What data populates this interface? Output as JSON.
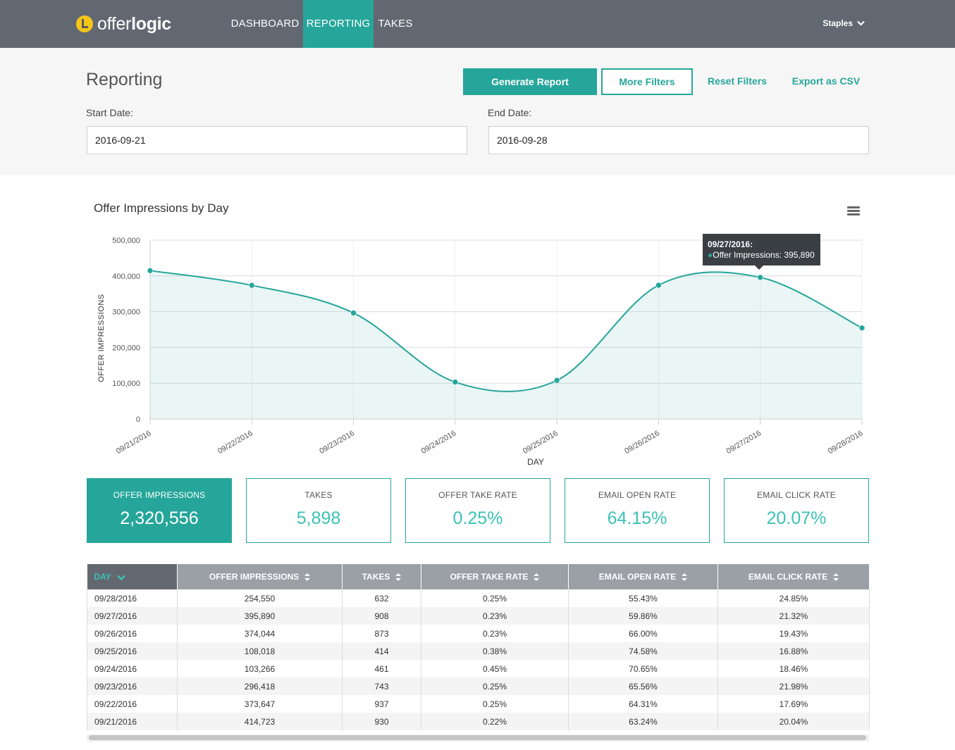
{
  "nav": {
    "brand": {
      "prefix": "offer",
      "bold": "logic"
    },
    "items": [
      "DASHBOARD",
      "REPORTING",
      "TAKES"
    ],
    "active": "REPORTING",
    "account": "Staples",
    "accent": "#26a69a",
    "bar_color": "#626871"
  },
  "filters": {
    "title": "Reporting",
    "generate_label": "Generate Report",
    "more_filters_label": "More Filters",
    "reset_label": "Reset Filters",
    "export_label": "Export as CSV",
    "start_label": "Start Date:",
    "start_value": "2016-09-21",
    "end_label": "End Date:",
    "end_value": "2016-09-28"
  },
  "chart": {
    "title": "Offer Impressions by Day",
    "tooltip": {
      "date": "09/27/2016:",
      "series": "Offer Impressions",
      "value": "395,890"
    }
  },
  "chart_data": {
    "type": "area",
    "title": "Offer Impressions by Day",
    "xlabel": "DAY",
    "ylabel": "OFFER IMPRESSIONS",
    "x": [
      "09/21/2016",
      "09/22/2016",
      "09/23/2016",
      "09/24/2016",
      "09/25/2016",
      "09/26/2016",
      "09/27/2016",
      "09/28/2016"
    ],
    "series": [
      {
        "name": "Offer Impressions",
        "values": [
          414723,
          373647,
          296418,
          103266,
          108018,
          374044,
          395890,
          254550
        ],
        "color": "#26a69a"
      }
    ],
    "ylim": [
      0,
      500000
    ],
    "yticks": [
      0,
      100000,
      200000,
      300000,
      400000,
      500000
    ],
    "ytick_labels": [
      "0",
      "100,000",
      "200,000",
      "300,000",
      "400,000",
      "500,000"
    ],
    "grid": true,
    "highlighted_point": "09/27/2016"
  },
  "stats": [
    {
      "label": "OFFER IMPRESSIONS",
      "value": "2,320,556"
    },
    {
      "label": "TAKES",
      "value": "5,898"
    },
    {
      "label": "OFFER TAKE RATE",
      "value": "0.25%"
    },
    {
      "label": "EMAIL OPEN RATE",
      "value": "64.15%"
    },
    {
      "label": "EMAIL CLICK RATE",
      "value": "20.07%"
    }
  ],
  "table": {
    "columns": [
      "DAY",
      "OFFER IMPRESSIONS",
      "TAKES",
      "OFFER TAKE RATE",
      "EMAIL OPEN RATE",
      "EMAIL CLICK RATE"
    ],
    "sorted_column": "DAY",
    "rows": [
      [
        "09/28/2016",
        "254,550",
        "632",
        "0.25%",
        "55.43%",
        "24.85%"
      ],
      [
        "09/27/2016",
        "395,890",
        "908",
        "0.23%",
        "59.86%",
        "21.32%"
      ],
      [
        "09/26/2016",
        "374,044",
        "873",
        "0.23%",
        "66.00%",
        "19.43%"
      ],
      [
        "09/25/2016",
        "108,018",
        "414",
        "0.38%",
        "74.58%",
        "16.88%"
      ],
      [
        "09/24/2016",
        "103,266",
        "461",
        "0.45%",
        "70.65%",
        "18.46%"
      ],
      [
        "09/23/2016",
        "296,418",
        "743",
        "0.25%",
        "65.56%",
        "21.98%"
      ],
      [
        "09/22/2016",
        "373,647",
        "937",
        "0.25%",
        "64.31%",
        "17.69%"
      ],
      [
        "09/21/2016",
        "414,723",
        "930",
        "0.22%",
        "63.24%",
        "20.04%"
      ]
    ]
  }
}
